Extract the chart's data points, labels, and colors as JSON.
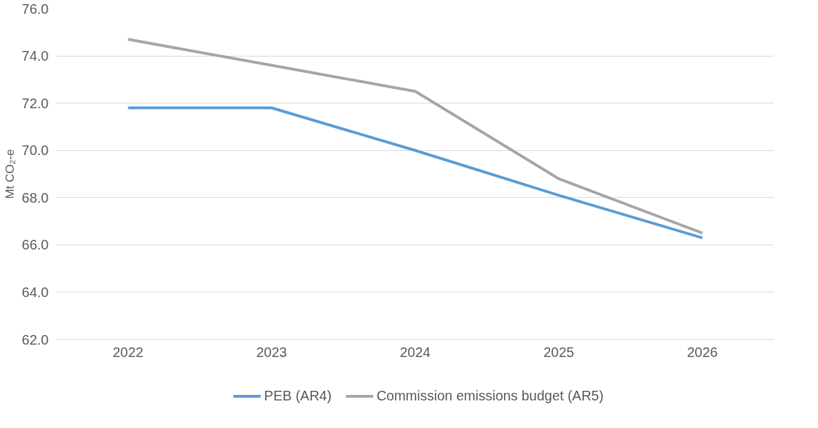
{
  "chart_data": {
    "type": "line",
    "ylabel": "Mt CO₂-e",
    "categories": [
      "2022",
      "2023",
      "2024",
      "2025",
      "2026"
    ],
    "series": [
      {
        "name": "PEB (AR4)",
        "color": "#5b9bd5",
        "values": [
          71.8,
          71.8,
          70.0,
          68.1,
          66.3
        ]
      },
      {
        "name": "Commission emissions budget (AR5)",
        "color": "#a5a5a5",
        "values": [
          74.7,
          73.6,
          72.5,
          68.8,
          66.5
        ]
      }
    ],
    "ylim": [
      62,
      76
    ],
    "yticks": [
      {
        "value": 62,
        "label": "62.0"
      },
      {
        "value": 64,
        "label": "64.0"
      },
      {
        "value": 66,
        "label": "66.0"
      },
      {
        "value": 68,
        "label": "68.0"
      },
      {
        "value": 70,
        "label": "70.0"
      },
      {
        "value": 72,
        "label": "72.0"
      },
      {
        "value": 74,
        "label": "74.0"
      },
      {
        "value": 76,
        "label": "76.0"
      }
    ],
    "grid": "y",
    "legend": "bottom",
    "marker": "none",
    "line_style": "solid"
  }
}
